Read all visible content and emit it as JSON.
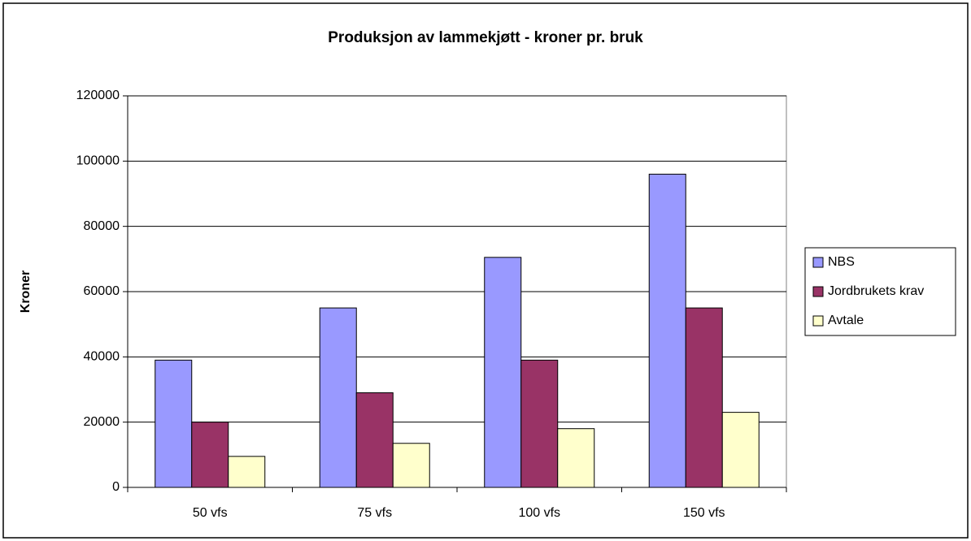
{
  "chart_data": {
    "type": "bar",
    "title": "Produksjon av lammekjøtt - kroner pr. bruk",
    "y_label": "Kroner",
    "categories": [
      "50 vfs",
      "75 vfs",
      "100 vfs",
      "150 vfs"
    ],
    "series": [
      {
        "name": "NBS",
        "color": "#9999ff",
        "values": [
          39000,
          55000,
          70500,
          96000
        ]
      },
      {
        "name": "Jordbrukets krav",
        "color": "#993366",
        "values": [
          20000,
          29000,
          39000,
          55000
        ]
      },
      {
        "name": "Avtale",
        "color": "#ffffcc",
        "values": [
          9500,
          13500,
          18000,
          23000
        ]
      }
    ],
    "ylim": [
      0,
      120000
    ],
    "yticks": [
      0,
      20000,
      40000,
      60000,
      80000,
      100000,
      120000
    ],
    "grid": true,
    "legend": "right"
  }
}
